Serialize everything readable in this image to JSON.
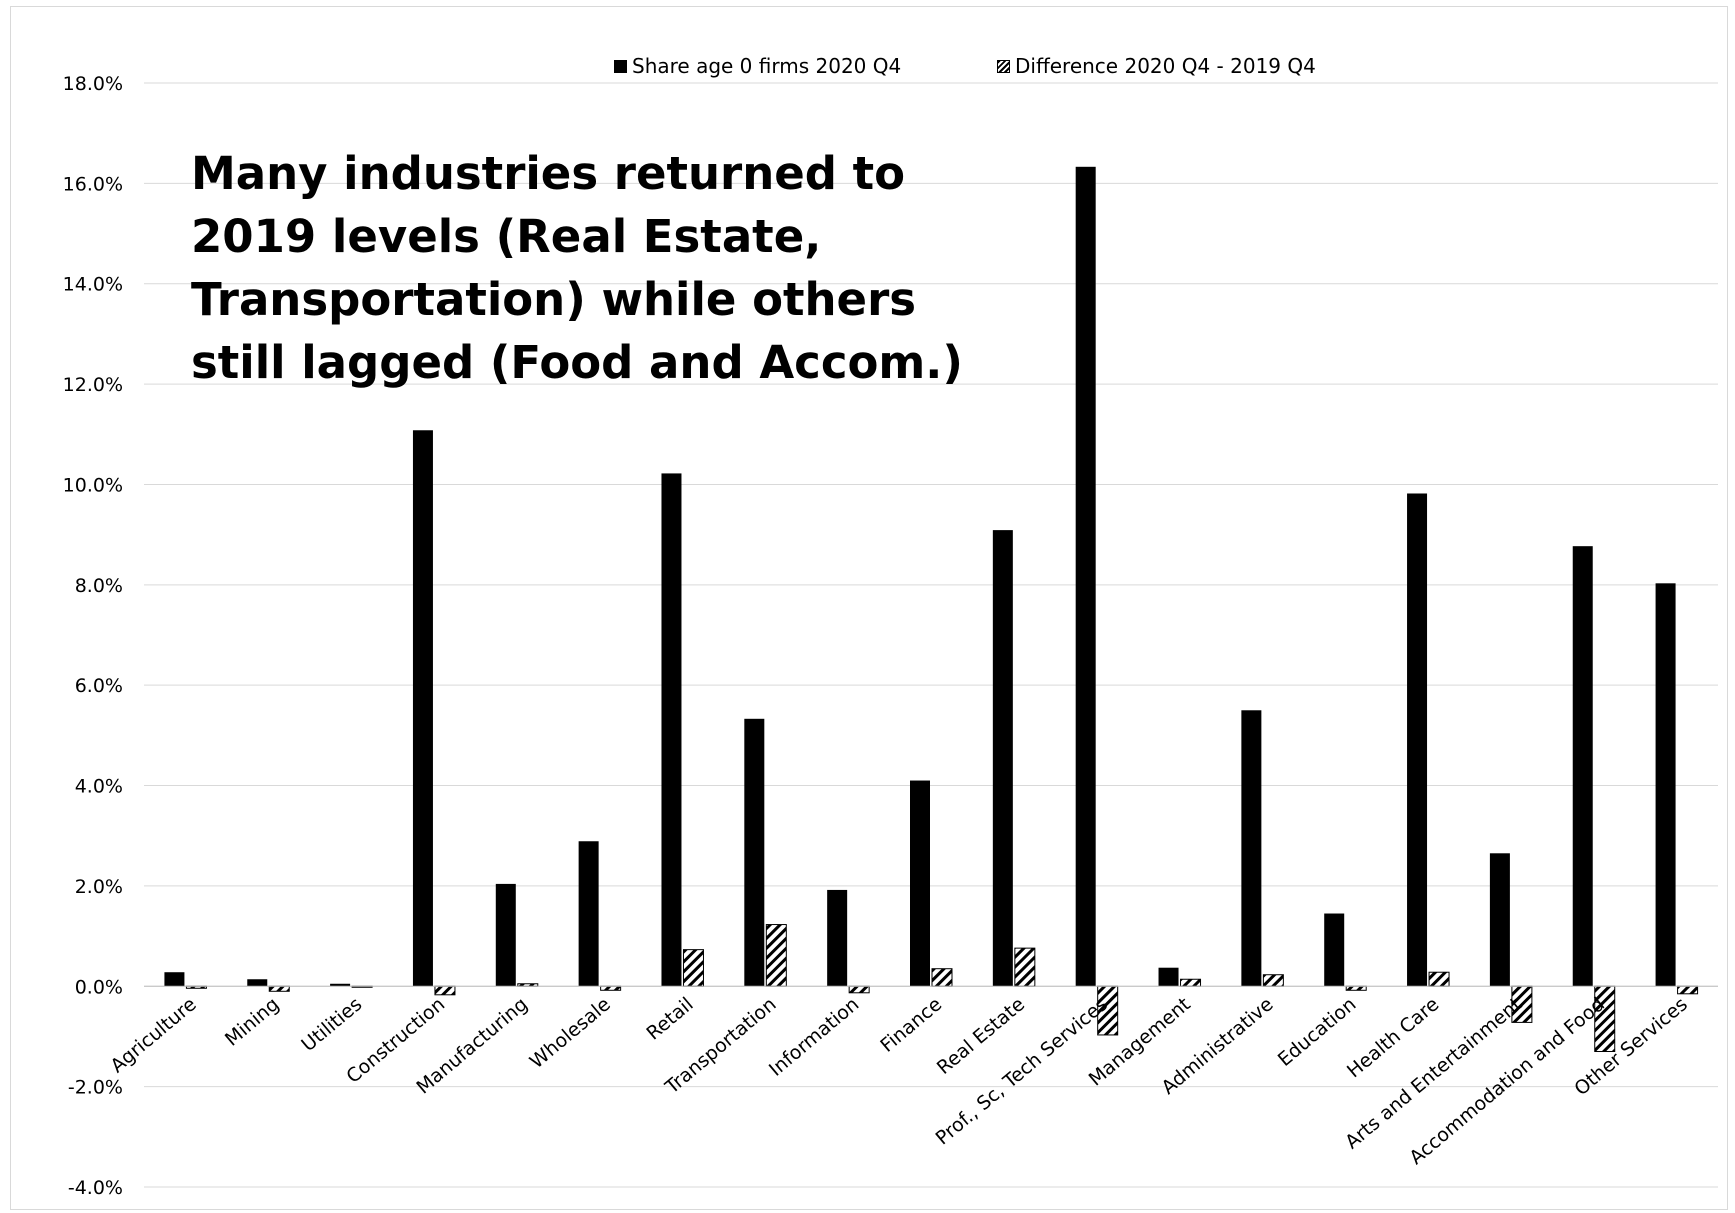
{
  "chart_data": {
    "type": "bar",
    "title": "",
    "xlabel": "",
    "ylabel": "",
    "ylim": [
      -0.04,
      0.18
    ],
    "y_ticks": [
      "18.0%",
      "16.0%",
      "14.0%",
      "12.0%",
      "10.0%",
      "8.0%",
      "6.0%",
      "4.0%",
      "2.0%",
      "0.0%",
      "-2.0%",
      "-4.0%"
    ],
    "y_tick_values": [
      0.18,
      0.16,
      0.14,
      0.12,
      0.1,
      0.08,
      0.06,
      0.04,
      0.02,
      0.0,
      -0.02,
      -0.04
    ],
    "grid": true,
    "legend_position": "top",
    "annotation": "Many industries returned to 2019 levels (Real Estate, Transportation) while others still lagged (Food and Accom.)",
    "categories": [
      "Agriculture",
      "Mining",
      "Utilities",
      "Construction",
      "Manufacturing",
      "Wholesale",
      "Retail",
      "Transportation",
      "Information",
      "Finance",
      "Real Estate",
      "Prof., Sc, Tech Services",
      "Management",
      "Administrative",
      "Education",
      "Health Care",
      "Arts and Entertainment",
      "Accommodation and Food",
      "Other Services"
    ],
    "series": [
      {
        "name": "Share age 0 firms 2020 Q4",
        "pattern": "solid",
        "color": "#000000",
        "values": [
          0.0028,
          0.0014,
          0.0005,
          0.1108,
          0.0204,
          0.0289,
          0.1022,
          0.0533,
          0.0192,
          0.041,
          0.0909,
          0.1633,
          0.0037,
          0.055,
          0.0145,
          0.0982,
          0.0265,
          0.0877,
          0.0803
        ]
      },
      {
        "name": "Difference 2020 Q4 - 2019 Q4",
        "pattern": "hatched",
        "color": "#000000",
        "values": [
          -0.0004,
          -0.001,
          -0.0002,
          -0.0017,
          0.0005,
          -0.0008,
          0.0073,
          0.0123,
          -0.0013,
          0.0035,
          0.0076,
          -0.0097,
          0.0014,
          0.0023,
          -0.0008,
          0.0028,
          -0.0072,
          -0.013,
          -0.0015
        ]
      }
    ]
  }
}
